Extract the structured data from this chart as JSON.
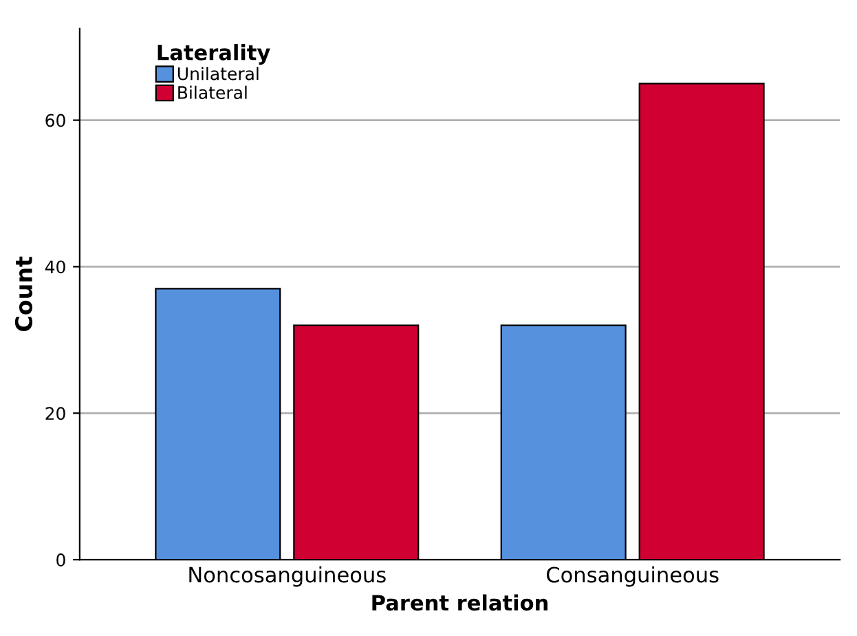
{
  "chart_data": {
    "type": "bar",
    "xlabel": "Parent relation",
    "ylabel": "Count",
    "legend_title": "Laterality",
    "categories": [
      "Noncosanguineous",
      "Consanguineous"
    ],
    "series": [
      {
        "name": "Unilateral",
        "color": "#5591dc",
        "values": [
          37,
          32
        ]
      },
      {
        "name": "Bilateral",
        "color": "#d10032",
        "values": [
          32,
          65
        ]
      }
    ],
    "ylim": [
      0,
      72.5
    ],
    "yticks": [
      0,
      20,
      40,
      60
    ],
    "grid": "y",
    "legend": "top left"
  }
}
